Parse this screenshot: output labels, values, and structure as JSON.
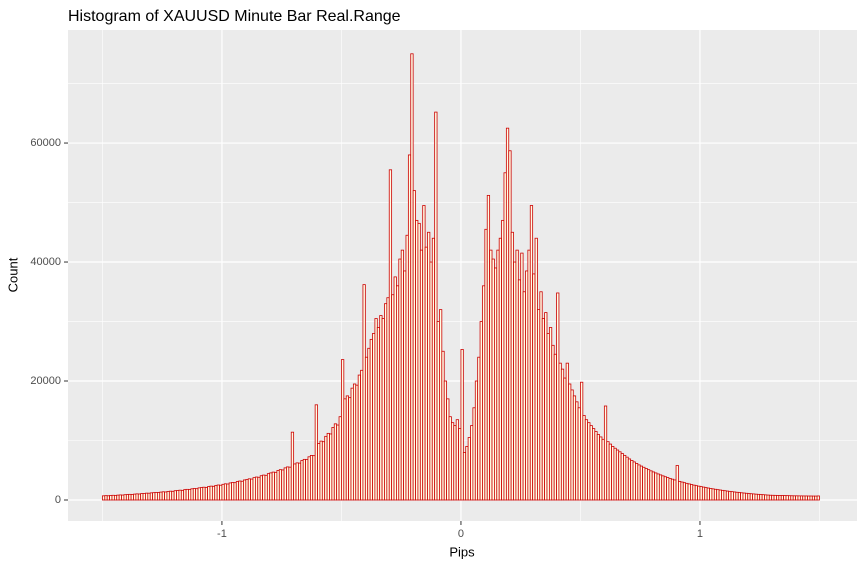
{
  "chart_data": {
    "type": "histogram",
    "title": "Histogram of XAUUSD Minute Bar Real.Range",
    "x_label": "Pips",
    "y_label": "Count",
    "color": "#cc0000",
    "fill": "#fffde6",
    "grid": true,
    "xlim": [
      -1.644,
      1.657
    ],
    "ylim": [
      -3530,
      79000
    ],
    "xticks": [
      -1,
      0,
      1
    ],
    "yticks": [
      0,
      20000,
      40000,
      60000
    ],
    "x_minor_ticks": [
      -1.5,
      -0.5,
      0.5,
      1.5
    ],
    "y_minor_ticks": [
      10000,
      30000,
      50000,
      70000
    ],
    "bins": [
      -1.5,
      -1.49,
      -1.48,
      -1.47,
      -1.46,
      -1.45,
      -1.44,
      -1.43,
      -1.42,
      -1.41,
      -1.4,
      -1.39,
      -1.38,
      -1.37,
      -1.36,
      -1.35,
      -1.34,
      -1.33,
      -1.32,
      -1.31,
      -1.3,
      -1.29,
      -1.28,
      -1.27,
      -1.26,
      -1.25,
      -1.24,
      -1.23,
      -1.22,
      -1.21,
      -1.2,
      -1.19,
      -1.18,
      -1.17,
      -1.16,
      -1.15,
      -1.14,
      -1.13,
      -1.12,
      -1.11,
      -1.1,
      -1.09,
      -1.08,
      -1.07,
      -1.06,
      -1.05,
      -1.04,
      -1.03,
      -1.02,
      -1.01,
      -1,
      -0.99,
      -0.98,
      -0.97,
      -0.96,
      -0.95,
      -0.94,
      -0.93,
      -0.92,
      -0.91,
      -0.9,
      -0.89,
      -0.88,
      -0.87,
      -0.86,
      -0.85,
      -0.84,
      -0.83,
      -0.82,
      -0.81,
      -0.8,
      -0.79,
      -0.78,
      -0.77,
      -0.76,
      -0.75,
      -0.74,
      -0.73,
      -0.72,
      -0.71,
      -0.7,
      -0.69,
      -0.68,
      -0.67,
      -0.66,
      -0.65,
      -0.64,
      -0.63,
      -0.62,
      -0.61,
      -0.6,
      -0.59,
      -0.58,
      -0.57,
      -0.56,
      -0.55,
      -0.54,
      -0.53,
      -0.52,
      -0.51,
      -0.5,
      -0.49,
      -0.48,
      -0.47,
      -0.46,
      -0.45,
      -0.44,
      -0.43,
      -0.42,
      -0.41,
      -0.4,
      -0.39,
      -0.38,
      -0.37,
      -0.36,
      -0.35,
      -0.34,
      -0.33,
      -0.32,
      -0.31,
      -0.3,
      -0.29,
      -0.28,
      -0.27,
      -0.26,
      -0.25,
      -0.24,
      -0.23,
      -0.22,
      -0.21,
      -0.2,
      -0.19,
      -0.18,
      -0.17,
      -0.16,
      -0.15,
      -0.14,
      -0.13,
      -0.12,
      -0.11,
      -0.1,
      -0.09,
      -0.08,
      -0.07,
      -0.06,
      -0.05,
      -0.04,
      -0.03,
      -0.02,
      -0.01,
      0,
      0.01,
      0.02,
      0.03,
      0.04,
      0.05,
      0.06,
      0.07,
      0.08,
      0.09,
      0.1,
      0.11,
      0.12,
      0.13,
      0.14,
      0.15,
      0.16,
      0.17,
      0.18,
      0.19,
      0.2,
      0.21,
      0.22,
      0.23,
      0.24,
      0.25,
      0.26,
      0.27,
      0.28,
      0.29,
      0.3,
      0.31,
      0.32,
      0.33,
      0.34,
      0.35,
      0.36,
      0.37,
      0.38,
      0.39,
      0.4,
      0.41,
      0.42,
      0.43,
      0.44,
      0.45,
      0.46,
      0.47,
      0.48,
      0.49,
      0.5,
      0.51,
      0.52,
      0.53,
      0.54,
      0.55,
      0.56,
      0.57,
      0.58,
      0.59,
      0.6,
      0.61,
      0.62,
      0.63,
      0.64,
      0.65,
      0.66,
      0.67,
      0.68,
      0.69,
      0.7,
      0.71,
      0.72,
      0.73,
      0.74,
      0.75,
      0.76,
      0.77,
      0.78,
      0.79,
      0.8,
      0.81,
      0.82,
      0.83,
      0.84,
      0.85,
      0.86,
      0.87,
      0.88,
      0.89,
      0.9,
      0.91,
      0.92,
      0.93,
      0.94,
      0.95,
      0.96,
      0.97,
      0.98,
      0.99,
      1,
      1.01,
      1.02,
      1.03,
      1.04,
      1.05,
      1.06,
      1.07,
      1.08,
      1.09,
      1.1,
      1.11,
      1.12,
      1.13,
      1.14,
      1.15,
      1.16,
      1.17,
      1.18,
      1.19,
      1.2,
      1.21,
      1.22,
      1.23,
      1.24,
      1.25,
      1.26,
      1.27,
      1.28,
      1.29,
      1.3,
      1.31,
      1.32,
      1.33,
      1.34,
      1.35,
      1.36,
      1.37,
      1.38,
      1.39,
      1.4,
      1.41,
      1.42,
      1.43,
      1.44,
      1.45,
      1.46,
      1.47,
      1.48,
      1.49,
      1.5
    ],
    "values": [
      700,
      730,
      710,
      760,
      790,
      770,
      820,
      850,
      830,
      890,
      910,
      950,
      930,
      990,
      1030,
      1010,
      1080,
      1100,
      1150,
      1140,
      1200,
      1230,
      1270,
      1250,
      1330,
      1380,
      1350,
      1440,
      1480,
      1460,
      1560,
      1600,
      1650,
      1620,
      1740,
      1790,
      1760,
      1880,
      1930,
      1900,
      2040,
      2090,
      2150,
      2110,
      2270,
      2330,
      2300,
      2450,
      2520,
      2480,
      2640,
      2720,
      2690,
      2870,
      2950,
      2910,
      3110,
      3190,
      3150,
      3370,
      3450,
      3560,
      3520,
      3760,
      3860,
      3820,
      4080,
      4190,
      4150,
      4430,
      4560,
      4690,
      4650,
      4960,
      5100,
      5050,
      5400,
      5560,
      5520,
      11400,
      6060,
      6240,
      6200,
      6630,
      6830,
      6790,
      7260,
      7490,
      7450,
      16000,
      9500,
      9900,
      9800,
      10700,
      11200,
      11100,
      12200,
      12800,
      12600,
      14000,
      23600,
      17000,
      17500,
      17200,
      18800,
      19500,
      19300,
      21000,
      21800,
      36200,
      24000,
      25500,
      27000,
      28000,
      30500,
      29000,
      31000,
      30500,
      33000,
      34000,
      55500,
      34500,
      37500,
      36000,
      40500,
      42000,
      38500,
      44500,
      58000,
      75000,
      52000,
      47000,
      46500,
      42000,
      49500,
      42500,
      45000,
      40000,
      44000,
      65200,
      30000,
      32000,
      25000,
      20000,
      17000,
      14000,
      13000,
      12500,
      13500,
      12000,
      25300,
      8000,
      9000,
      10500,
      12500,
      15500,
      20000,
      24000,
      30000,
      36000,
      45500,
      51200,
      42000,
      40500,
      39000,
      42000,
      44000,
      47000,
      55000,
      62500,
      58700,
      45000,
      40000,
      42000,
      37000,
      41500,
      35000,
      38500,
      42000,
      49500,
      38000,
      44000,
      32000,
      35000,
      30500,
      31500,
      28000,
      29000,
      26000,
      24500,
      34800,
      23000,
      22000,
      20500,
      23000,
      19500,
      18500,
      17500,
      16500,
      15500,
      19800,
      14200,
      13500,
      13000,
      12500,
      12000,
      11500,
      11000,
      10600,
      10200,
      15800,
      9800,
      9400,
      9000,
      8700,
      8400,
      8100,
      7800,
      7500,
      7200,
      6900,
      6650,
      6400,
      6150,
      5900,
      5700,
      5500,
      5300,
      5100,
      4900,
      4720,
      4550,
      4380,
      4220,
      4060,
      3910,
      3770,
      3630,
      3500,
      3370,
      5800,
      3130,
      3020,
      2910,
      2800,
      2700,
      2600,
      2500,
      2410,
      2330,
      2250,
      2170,
      2090,
      2010,
      1940,
      1870,
      1800,
      1740,
      1680,
      1620,
      1560,
      1500,
      1450,
      1400,
      1350,
      1300,
      1260,
      1210,
      1170,
      1130,
      1090,
      1050,
      1020,
      980,
      950,
      920,
      890,
      860,
      830,
      800,
      790,
      780,
      770,
      760,
      750,
      740,
      730,
      720,
      710,
      700,
      700,
      690,
      690,
      680,
      680,
      670,
      670,
      660,
      660,
      680
    ]
  }
}
